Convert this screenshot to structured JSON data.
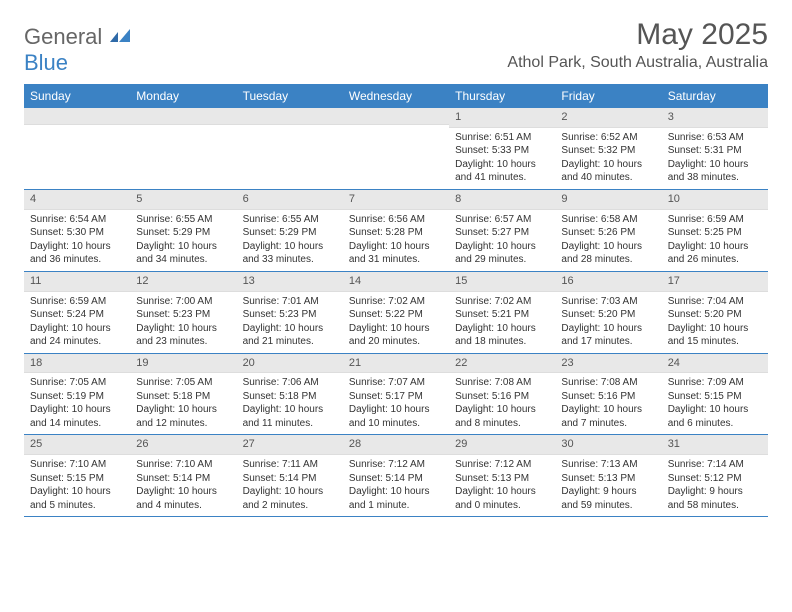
{
  "logo": {
    "text1": "General",
    "text2": "Blue"
  },
  "title": "May 2025",
  "location": "Athol Park, South Australia, Australia",
  "colors": {
    "header_bg": "#3b82c4",
    "header_text": "#ffffff",
    "daynum_bg": "#e8e8e8",
    "border": "#3b82c4",
    "text": "#333333",
    "logo_gray": "#666666",
    "logo_blue": "#3b82c4"
  },
  "dayNames": [
    "Sunday",
    "Monday",
    "Tuesday",
    "Wednesday",
    "Thursday",
    "Friday",
    "Saturday"
  ],
  "weeks": [
    [
      {
        "n": "",
        "sr": "",
        "ss": "",
        "dl": ""
      },
      {
        "n": "",
        "sr": "",
        "ss": "",
        "dl": ""
      },
      {
        "n": "",
        "sr": "",
        "ss": "",
        "dl": ""
      },
      {
        "n": "",
        "sr": "",
        "ss": "",
        "dl": ""
      },
      {
        "n": "1",
        "sr": "Sunrise: 6:51 AM",
        "ss": "Sunset: 5:33 PM",
        "dl": "Daylight: 10 hours and 41 minutes."
      },
      {
        "n": "2",
        "sr": "Sunrise: 6:52 AM",
        "ss": "Sunset: 5:32 PM",
        "dl": "Daylight: 10 hours and 40 minutes."
      },
      {
        "n": "3",
        "sr": "Sunrise: 6:53 AM",
        "ss": "Sunset: 5:31 PM",
        "dl": "Daylight: 10 hours and 38 minutes."
      }
    ],
    [
      {
        "n": "4",
        "sr": "Sunrise: 6:54 AM",
        "ss": "Sunset: 5:30 PM",
        "dl": "Daylight: 10 hours and 36 minutes."
      },
      {
        "n": "5",
        "sr": "Sunrise: 6:55 AM",
        "ss": "Sunset: 5:29 PM",
        "dl": "Daylight: 10 hours and 34 minutes."
      },
      {
        "n": "6",
        "sr": "Sunrise: 6:55 AM",
        "ss": "Sunset: 5:29 PM",
        "dl": "Daylight: 10 hours and 33 minutes."
      },
      {
        "n": "7",
        "sr": "Sunrise: 6:56 AM",
        "ss": "Sunset: 5:28 PM",
        "dl": "Daylight: 10 hours and 31 minutes."
      },
      {
        "n": "8",
        "sr": "Sunrise: 6:57 AM",
        "ss": "Sunset: 5:27 PM",
        "dl": "Daylight: 10 hours and 29 minutes."
      },
      {
        "n": "9",
        "sr": "Sunrise: 6:58 AM",
        "ss": "Sunset: 5:26 PM",
        "dl": "Daylight: 10 hours and 28 minutes."
      },
      {
        "n": "10",
        "sr": "Sunrise: 6:59 AM",
        "ss": "Sunset: 5:25 PM",
        "dl": "Daylight: 10 hours and 26 minutes."
      }
    ],
    [
      {
        "n": "11",
        "sr": "Sunrise: 6:59 AM",
        "ss": "Sunset: 5:24 PM",
        "dl": "Daylight: 10 hours and 24 minutes."
      },
      {
        "n": "12",
        "sr": "Sunrise: 7:00 AM",
        "ss": "Sunset: 5:23 PM",
        "dl": "Daylight: 10 hours and 23 minutes."
      },
      {
        "n": "13",
        "sr": "Sunrise: 7:01 AM",
        "ss": "Sunset: 5:23 PM",
        "dl": "Daylight: 10 hours and 21 minutes."
      },
      {
        "n": "14",
        "sr": "Sunrise: 7:02 AM",
        "ss": "Sunset: 5:22 PM",
        "dl": "Daylight: 10 hours and 20 minutes."
      },
      {
        "n": "15",
        "sr": "Sunrise: 7:02 AM",
        "ss": "Sunset: 5:21 PM",
        "dl": "Daylight: 10 hours and 18 minutes."
      },
      {
        "n": "16",
        "sr": "Sunrise: 7:03 AM",
        "ss": "Sunset: 5:20 PM",
        "dl": "Daylight: 10 hours and 17 minutes."
      },
      {
        "n": "17",
        "sr": "Sunrise: 7:04 AM",
        "ss": "Sunset: 5:20 PM",
        "dl": "Daylight: 10 hours and 15 minutes."
      }
    ],
    [
      {
        "n": "18",
        "sr": "Sunrise: 7:05 AM",
        "ss": "Sunset: 5:19 PM",
        "dl": "Daylight: 10 hours and 14 minutes."
      },
      {
        "n": "19",
        "sr": "Sunrise: 7:05 AM",
        "ss": "Sunset: 5:18 PM",
        "dl": "Daylight: 10 hours and 12 minutes."
      },
      {
        "n": "20",
        "sr": "Sunrise: 7:06 AM",
        "ss": "Sunset: 5:18 PM",
        "dl": "Daylight: 10 hours and 11 minutes."
      },
      {
        "n": "21",
        "sr": "Sunrise: 7:07 AM",
        "ss": "Sunset: 5:17 PM",
        "dl": "Daylight: 10 hours and 10 minutes."
      },
      {
        "n": "22",
        "sr": "Sunrise: 7:08 AM",
        "ss": "Sunset: 5:16 PM",
        "dl": "Daylight: 10 hours and 8 minutes."
      },
      {
        "n": "23",
        "sr": "Sunrise: 7:08 AM",
        "ss": "Sunset: 5:16 PM",
        "dl": "Daylight: 10 hours and 7 minutes."
      },
      {
        "n": "24",
        "sr": "Sunrise: 7:09 AM",
        "ss": "Sunset: 5:15 PM",
        "dl": "Daylight: 10 hours and 6 minutes."
      }
    ],
    [
      {
        "n": "25",
        "sr": "Sunrise: 7:10 AM",
        "ss": "Sunset: 5:15 PM",
        "dl": "Daylight: 10 hours and 5 minutes."
      },
      {
        "n": "26",
        "sr": "Sunrise: 7:10 AM",
        "ss": "Sunset: 5:14 PM",
        "dl": "Daylight: 10 hours and 4 minutes."
      },
      {
        "n": "27",
        "sr": "Sunrise: 7:11 AM",
        "ss": "Sunset: 5:14 PM",
        "dl": "Daylight: 10 hours and 2 minutes."
      },
      {
        "n": "28",
        "sr": "Sunrise: 7:12 AM",
        "ss": "Sunset: 5:14 PM",
        "dl": "Daylight: 10 hours and 1 minute."
      },
      {
        "n": "29",
        "sr": "Sunrise: 7:12 AM",
        "ss": "Sunset: 5:13 PM",
        "dl": "Daylight: 10 hours and 0 minutes."
      },
      {
        "n": "30",
        "sr": "Sunrise: 7:13 AM",
        "ss": "Sunset: 5:13 PM",
        "dl": "Daylight: 9 hours and 59 minutes."
      },
      {
        "n": "31",
        "sr": "Sunrise: 7:14 AM",
        "ss": "Sunset: 5:12 PM",
        "dl": "Daylight: 9 hours and 58 minutes."
      }
    ]
  ]
}
